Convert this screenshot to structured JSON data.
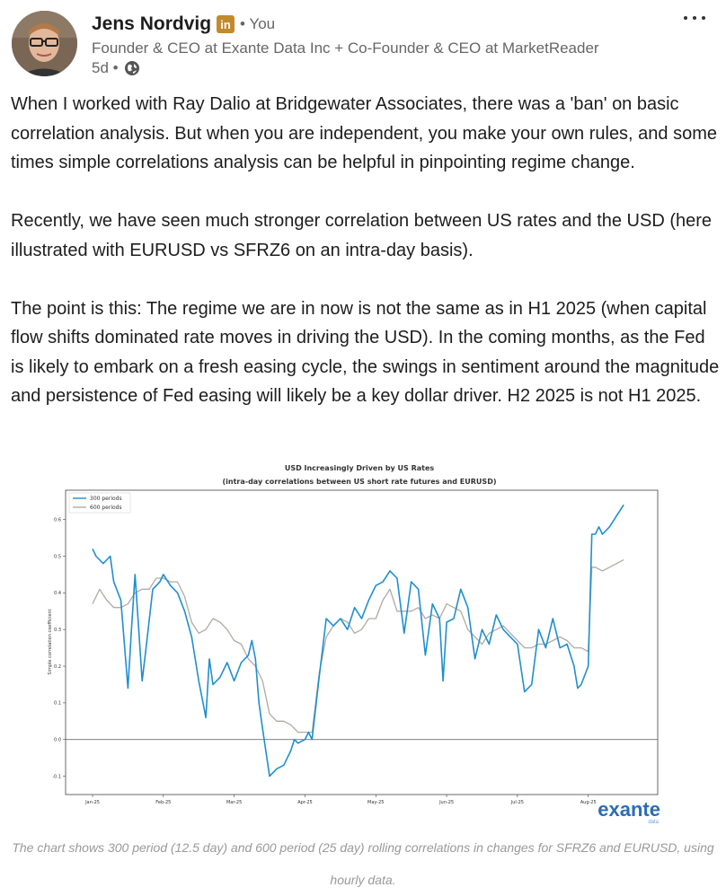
{
  "post": {
    "author": {
      "name": "Jens Nordvig",
      "badge": "in",
      "relation": "• You",
      "headline": "Founder & CEO at Exante Data Inc + Co-Founder & CEO at MarketReader",
      "age": "5d •",
      "visibility_icon": "globe-icon"
    },
    "more_icon": "more-dots-icon",
    "paragraphs": [
      "When I worked with Ray Dalio at Bridgewater Associates, there was a 'ban' on basic correlation analysis. But when you are independent, you make your own rules, and some times simple correlations analysis can be helpful in pinpointing regime change.",
      "Recently, we have seen much stronger correlation between US rates and the USD (here illustrated with EURUSD vs SFRZ6 on an intra-day basis).",
      "The point is this: The regime we are in now is not the same as in H1 2025 (when capital flow shifts dominated rate moves in driving the USD). In the coming months, as the Fed is likely to embark on a fresh easing cycle, the swings in sentiment around the magnitude and persistence of Fed easing will likely be a key dollar driver. H2 2025 is not H1 2025."
    ],
    "caption": "The chart shows 300 period (12.5 day) and 600 period (25 day) rolling correlations in changes for SFRZ6 and EURUSD, using hourly data.",
    "brand": {
      "name": "exante",
      "sub": "data"
    }
  },
  "colors": {
    "series_300": "#1f8fd0",
    "series_600": "#b0aaa4",
    "brand": "#2b6cb5"
  },
  "chart_data": {
    "type": "line",
    "title": "USD Increasingly Driven by US Rates",
    "subtitle": "(intra-day correlations between US short rate futures and EURUSD)",
    "xlabel": "",
    "ylabel": "Simple correlation coefficient",
    "x_ticks": [
      "Jan-25",
      "Feb-25",
      "Mar-25",
      "Apr-25",
      "May-25",
      "Jun-25",
      "Jul-25",
      "Aug-25"
    ],
    "y_ticks": [
      "-0.1",
      "0.0",
      "0.1",
      "0.2",
      "0.3",
      "0.4",
      "0.5",
      "0.6"
    ],
    "ylim": [
      -0.15,
      0.68
    ],
    "xlim": [
      0,
      7.6
    ],
    "legend_position": "top-left",
    "grid": false,
    "series": [
      {
        "name": "300 periods",
        "x": [
          0.0,
          0.05,
          0.15,
          0.25,
          0.3,
          0.4,
          0.5,
          0.55,
          0.6,
          0.7,
          0.75,
          0.85,
          0.95,
          1.0,
          1.1,
          1.2,
          1.3,
          1.4,
          1.5,
          1.6,
          1.65,
          1.7,
          1.8,
          1.9,
          2.0,
          2.1,
          2.2,
          2.25,
          2.3,
          2.35,
          2.4,
          2.5,
          2.6,
          2.7,
          2.8,
          2.85,
          2.9,
          3.0,
          3.05,
          3.1,
          3.2,
          3.3,
          3.4,
          3.5,
          3.6,
          3.7,
          3.8,
          3.9,
          4.0,
          4.1,
          4.2,
          4.3,
          4.4,
          4.5,
          4.6,
          4.7,
          4.8,
          4.9,
          4.95,
          5.0,
          5.1,
          5.2,
          5.3,
          5.4,
          5.5,
          5.6,
          5.7,
          5.8,
          5.9,
          6.0,
          6.1,
          6.2,
          6.3,
          6.4,
          6.5,
          6.6,
          6.7,
          6.8,
          6.85,
          6.9,
          7.0,
          7.05,
          7.1,
          7.15,
          7.2,
          7.3,
          7.4,
          7.5
        ],
        "values": [
          0.52,
          0.5,
          0.48,
          0.5,
          0.43,
          0.38,
          0.14,
          0.3,
          0.45,
          0.16,
          0.24,
          0.41,
          0.43,
          0.45,
          0.42,
          0.4,
          0.35,
          0.28,
          0.16,
          0.06,
          0.22,
          0.15,
          0.17,
          0.21,
          0.16,
          0.21,
          0.23,
          0.27,
          0.22,
          0.1,
          0.03,
          -0.1,
          -0.08,
          -0.07,
          -0.03,
          0.0,
          -0.01,
          0.0,
          0.02,
          0.0,
          0.17,
          0.33,
          0.31,
          0.33,
          0.3,
          0.36,
          0.33,
          0.38,
          0.42,
          0.43,
          0.46,
          0.44,
          0.29,
          0.43,
          0.41,
          0.23,
          0.37,
          0.33,
          0.16,
          0.32,
          0.33,
          0.41,
          0.36,
          0.22,
          0.3,
          0.26,
          0.34,
          0.3,
          0.28,
          0.26,
          0.13,
          0.15,
          0.3,
          0.25,
          0.33,
          0.25,
          0.26,
          0.2,
          0.14,
          0.15,
          0.2,
          0.56,
          0.56,
          0.58,
          0.56,
          0.58,
          0.61,
          0.64
        ]
      },
      {
        "name": "600 periods",
        "x": [
          0.0,
          0.1,
          0.2,
          0.3,
          0.4,
          0.5,
          0.6,
          0.7,
          0.8,
          0.9,
          1.0,
          1.1,
          1.2,
          1.3,
          1.4,
          1.5,
          1.6,
          1.7,
          1.8,
          1.9,
          2.0,
          2.1,
          2.2,
          2.3,
          2.4,
          2.5,
          2.6,
          2.7,
          2.8,
          2.9,
          3.0,
          3.1,
          3.2,
          3.3,
          3.4,
          3.5,
          3.6,
          3.7,
          3.8,
          3.9,
          4.0,
          4.1,
          4.2,
          4.3,
          4.4,
          4.5,
          4.6,
          4.7,
          4.8,
          4.9,
          5.0,
          5.1,
          5.2,
          5.3,
          5.4,
          5.5,
          5.6,
          5.7,
          5.8,
          5.9,
          6.0,
          6.1,
          6.2,
          6.3,
          6.4,
          6.5,
          6.6,
          6.7,
          6.8,
          6.9,
          7.0,
          7.05,
          7.1,
          7.2,
          7.3,
          7.4,
          7.5
        ],
        "values": [
          0.37,
          0.41,
          0.38,
          0.36,
          0.36,
          0.37,
          0.4,
          0.41,
          0.41,
          0.44,
          0.44,
          0.43,
          0.43,
          0.39,
          0.32,
          0.29,
          0.3,
          0.33,
          0.32,
          0.3,
          0.27,
          0.26,
          0.22,
          0.2,
          0.16,
          0.07,
          0.05,
          0.05,
          0.04,
          0.02,
          0.02,
          0.02,
          0.18,
          0.28,
          0.31,
          0.33,
          0.32,
          0.29,
          0.3,
          0.33,
          0.33,
          0.38,
          0.41,
          0.35,
          0.35,
          0.35,
          0.36,
          0.33,
          0.34,
          0.33,
          0.37,
          0.36,
          0.35,
          0.3,
          0.28,
          0.26,
          0.29,
          0.3,
          0.31,
          0.29,
          0.27,
          0.25,
          0.25,
          0.26,
          0.26,
          0.27,
          0.28,
          0.27,
          0.25,
          0.25,
          0.24,
          0.47,
          0.47,
          0.46,
          0.47,
          0.48,
          0.49
        ]
      }
    ]
  }
}
